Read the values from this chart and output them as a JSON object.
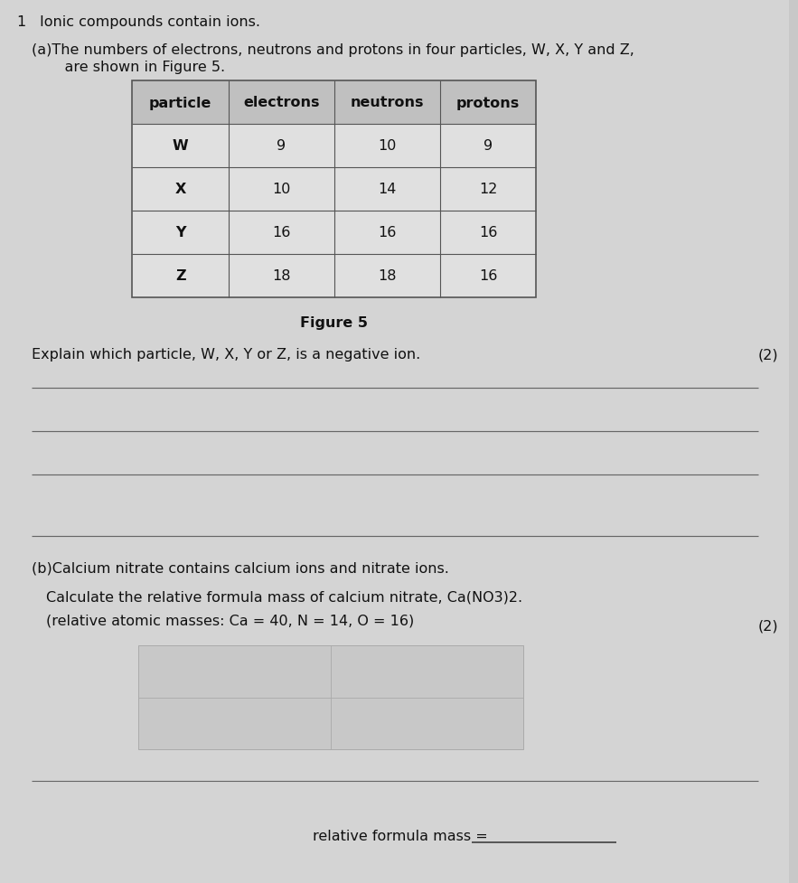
{
  "bg_color": "#c8c8c8",
  "white_area_color": "#e8e8e8",
  "question_number": "1",
  "intro_text": "Ionic compounds contain ions.",
  "part_a_line1": "(a)The numbers of electrons, neutrons and protons in four particles, W, X, Y and Z,",
  "part_a_line2": "    are shown in Figure 5.",
  "table_headers": [
    "particle",
    "electrons",
    "neutrons",
    "protons"
  ],
  "table_data": [
    [
      "W",
      "9",
      "10",
      "9"
    ],
    [
      "X",
      "10",
      "14",
      "12"
    ],
    [
      "Y",
      "16",
      "16",
      "16"
    ],
    [
      "Z",
      "18",
      "18",
      "16"
    ]
  ],
  "figure_caption": "Figure 5",
  "explain_text": "Explain which particle, W, X, Y or Z, is a negative ion.",
  "marks_a": "(2)",
  "part_b_header": "(b)Calcium nitrate contains calcium ions and nitrate ions.",
  "calc_text": "Calculate the relative formula mass of calcium nitrate, Ca(NO3)2.",
  "atomic_masses_text": "(relative atomic masses: Ca = 40, N = 14, O = 16)",
  "marks_b": "(2)",
  "answer_line_text": "relative formula mass = ",
  "header_bg": "#c0c0c0",
  "table_cell_bg": "#e0e0e0",
  "table_border_color": "#555555",
  "line_color": "#666666",
  "text_color": "#111111"
}
